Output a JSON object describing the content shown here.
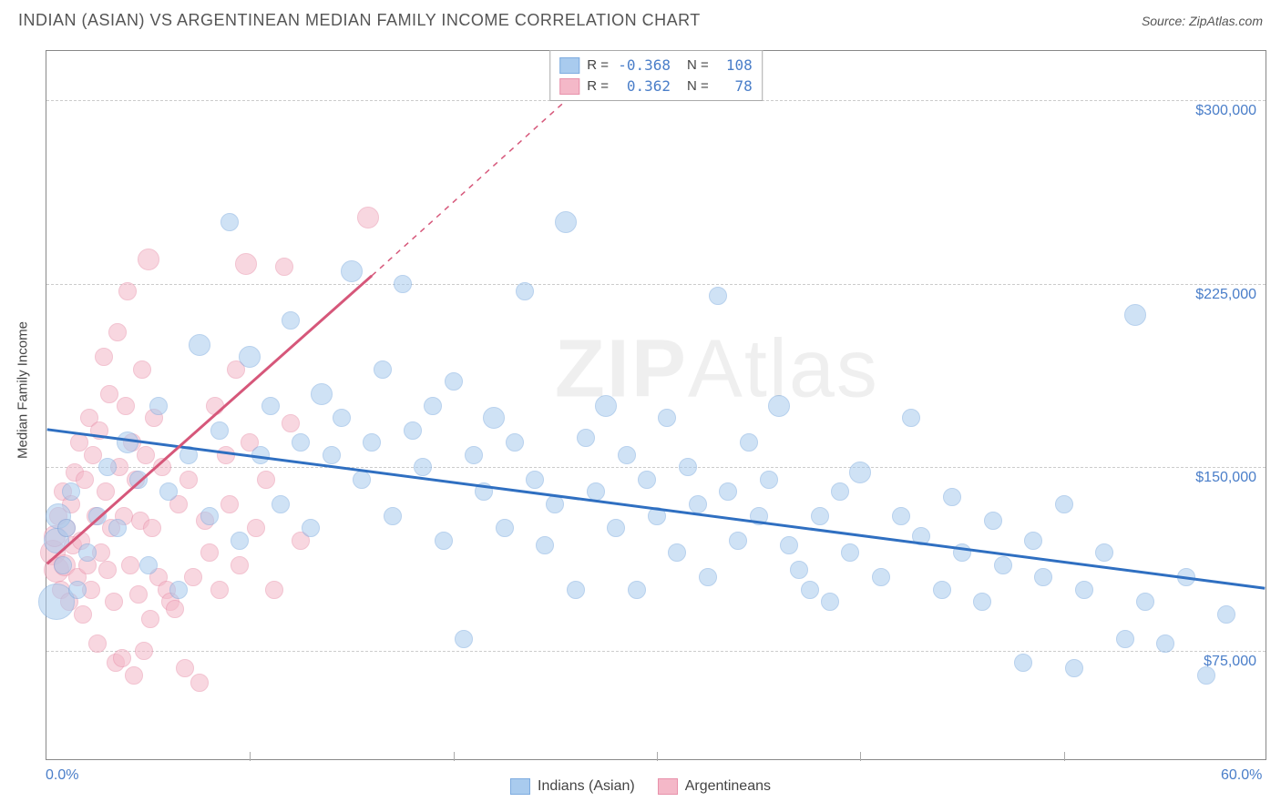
{
  "title": "INDIAN (ASIAN) VS ARGENTINEAN MEDIAN FAMILY INCOME CORRELATION CHART",
  "source": "Source: ZipAtlas.com",
  "y_axis_label": "Median Family Income",
  "watermark_prefix": "ZIP",
  "watermark_suffix": "Atlas",
  "chart": {
    "type": "scatter",
    "background_color": "#ffffff",
    "grid_color": "#cccccc",
    "border_color": "#888888",
    "x_range": [
      0,
      60
    ],
    "y_range": [
      30000,
      320000
    ],
    "x_ticks": [
      0,
      60
    ],
    "x_tick_labels": [
      "0.0%",
      "60.0%"
    ],
    "x_minor_ticks": [
      10,
      20,
      30,
      40,
      50
    ],
    "y_ticks": [
      75000,
      150000,
      225000,
      300000
    ],
    "y_tick_labels": [
      "$75,000",
      "$150,000",
      "$225,000",
      "$300,000"
    ],
    "tick_color": "#4a7ec9",
    "tick_fontsize": 16,
    "label_fontsize": 15
  },
  "series": [
    {
      "name": "Indians (Asian)",
      "fill": "#a9cbee",
      "stroke": "#7eace0",
      "opacity": 0.55,
      "R": "-0.368",
      "N": "108",
      "trend": {
        "x1": 0,
        "y1": 165000,
        "x2": 60,
        "y2": 100000,
        "color": "#2f6fc1",
        "width": 3,
        "dash": "none"
      },
      "points": [
        [
          0.5,
          120000,
          14
        ],
        [
          0.5,
          95000,
          20
        ],
        [
          0.6,
          130000,
          14
        ],
        [
          0.8,
          110000,
          10
        ],
        [
          1.0,
          125000,
          10
        ],
        [
          1.2,
          140000,
          10
        ],
        [
          1.5,
          100000,
          10
        ],
        [
          2.0,
          115000,
          10
        ],
        [
          2.5,
          130000,
          10
        ],
        [
          3.0,
          150000,
          10
        ],
        [
          3.5,
          125000,
          10
        ],
        [
          4.0,
          160000,
          12
        ],
        [
          4.5,
          145000,
          10
        ],
        [
          5.0,
          110000,
          10
        ],
        [
          5.5,
          175000,
          10
        ],
        [
          6.0,
          140000,
          10
        ],
        [
          6.5,
          100000,
          10
        ],
        [
          7.0,
          155000,
          10
        ],
        [
          7.5,
          200000,
          12
        ],
        [
          8.0,
          130000,
          10
        ],
        [
          8.5,
          165000,
          10
        ],
        [
          9.0,
          250000,
          10
        ],
        [
          9.5,
          120000,
          10
        ],
        [
          10.0,
          195000,
          12
        ],
        [
          10.5,
          155000,
          10
        ],
        [
          11.0,
          175000,
          10
        ],
        [
          11.5,
          135000,
          10
        ],
        [
          12.0,
          210000,
          10
        ],
        [
          12.5,
          160000,
          10
        ],
        [
          13.0,
          125000,
          10
        ],
        [
          13.5,
          180000,
          12
        ],
        [
          14.0,
          155000,
          10
        ],
        [
          14.5,
          170000,
          10
        ],
        [
          15.0,
          230000,
          12
        ],
        [
          15.5,
          145000,
          10
        ],
        [
          16.0,
          160000,
          10
        ],
        [
          16.5,
          190000,
          10
        ],
        [
          17.0,
          130000,
          10
        ],
        [
          17.5,
          225000,
          10
        ],
        [
          18.0,
          165000,
          10
        ],
        [
          18.5,
          150000,
          10
        ],
        [
          19.0,
          175000,
          10
        ],
        [
          19.5,
          120000,
          10
        ],
        [
          20.0,
          185000,
          10
        ],
        [
          20.5,
          80000,
          10
        ],
        [
          21.0,
          155000,
          10
        ],
        [
          21.5,
          140000,
          10
        ],
        [
          22.0,
          170000,
          12
        ],
        [
          22.5,
          125000,
          10
        ],
        [
          23.0,
          160000,
          10
        ],
        [
          23.5,
          222000,
          10
        ],
        [
          24.0,
          145000,
          10
        ],
        [
          24.5,
          118000,
          10
        ],
        [
          25.0,
          135000,
          10
        ],
        [
          25.5,
          250000,
          12
        ],
        [
          26.0,
          100000,
          10
        ],
        [
          26.5,
          162000,
          10
        ],
        [
          27.0,
          140000,
          10
        ],
        [
          27.5,
          175000,
          12
        ],
        [
          28.0,
          125000,
          10
        ],
        [
          28.5,
          155000,
          10
        ],
        [
          29.0,
          100000,
          10
        ],
        [
          29.5,
          145000,
          10
        ],
        [
          30.0,
          130000,
          10
        ],
        [
          30.5,
          170000,
          10
        ],
        [
          31.0,
          115000,
          10
        ],
        [
          31.5,
          150000,
          10
        ],
        [
          32.0,
          135000,
          10
        ],
        [
          32.5,
          105000,
          10
        ],
        [
          33.0,
          220000,
          10
        ],
        [
          33.5,
          140000,
          10
        ],
        [
          34.0,
          120000,
          10
        ],
        [
          34.5,
          160000,
          10
        ],
        [
          35.0,
          130000,
          10
        ],
        [
          35.5,
          145000,
          10
        ],
        [
          36.0,
          175000,
          12
        ],
        [
          36.5,
          118000,
          10
        ],
        [
          37.0,
          108000,
          10
        ],
        [
          37.5,
          100000,
          10
        ],
        [
          38.0,
          130000,
          10
        ],
        [
          38.5,
          95000,
          10
        ],
        [
          39.0,
          140000,
          10
        ],
        [
          39.5,
          115000,
          10
        ],
        [
          40.0,
          148000,
          12
        ],
        [
          41.0,
          105000,
          10
        ],
        [
          42.0,
          130000,
          10
        ],
        [
          42.5,
          170000,
          10
        ],
        [
          43.0,
          122000,
          10
        ],
        [
          44.0,
          100000,
          10
        ],
        [
          44.5,
          138000,
          10
        ],
        [
          45.0,
          115000,
          10
        ],
        [
          46.0,
          95000,
          10
        ],
        [
          46.5,
          128000,
          10
        ],
        [
          47.0,
          110000,
          10
        ],
        [
          48.0,
          70000,
          10
        ],
        [
          48.5,
          120000,
          10
        ],
        [
          49.0,
          105000,
          10
        ],
        [
          50.0,
          135000,
          10
        ],
        [
          50.5,
          68000,
          10
        ],
        [
          51.0,
          100000,
          10
        ],
        [
          52.0,
          115000,
          10
        ],
        [
          53.0,
          80000,
          10
        ],
        [
          53.5,
          212000,
          12
        ],
        [
          54.0,
          95000,
          10
        ],
        [
          55.0,
          78000,
          10
        ],
        [
          56.0,
          105000,
          10
        ],
        [
          57.0,
          65000,
          10
        ],
        [
          58.0,
          90000,
          10
        ]
      ]
    },
    {
      "name": "Argentineans",
      "fill": "#f4b8c8",
      "stroke": "#e892ab",
      "opacity": 0.55,
      "R": "0.362",
      "N": "78",
      "trend_solid": {
        "x1": 0,
        "y1": 110000,
        "x2": 16,
        "y2": 228000,
        "color": "#d6577a",
        "width": 3
      },
      "trend_dash": {
        "x1": 16,
        "y1": 228000,
        "x2": 28,
        "y2": 318000,
        "color": "#d6577a",
        "width": 1.5
      },
      "points": [
        [
          0.3,
          115000,
          14
        ],
        [
          0.4,
          122000,
          12
        ],
        [
          0.5,
          108000,
          14
        ],
        [
          0.6,
          130000,
          10
        ],
        [
          0.7,
          100000,
          10
        ],
        [
          0.8,
          140000,
          10
        ],
        [
          0.9,
          110000,
          12
        ],
        [
          1.0,
          125000,
          10
        ],
        [
          1.1,
          95000,
          10
        ],
        [
          1.2,
          135000,
          10
        ],
        [
          1.3,
          118000,
          10
        ],
        [
          1.4,
          148000,
          10
        ],
        [
          1.5,
          105000,
          10
        ],
        [
          1.6,
          160000,
          10
        ],
        [
          1.7,
          120000,
          10
        ],
        [
          1.8,
          90000,
          10
        ],
        [
          1.9,
          145000,
          10
        ],
        [
          2.0,
          110000,
          10
        ],
        [
          2.1,
          170000,
          10
        ],
        [
          2.2,
          100000,
          10
        ],
        [
          2.3,
          155000,
          10
        ],
        [
          2.4,
          130000,
          10
        ],
        [
          2.5,
          78000,
          10
        ],
        [
          2.6,
          165000,
          10
        ],
        [
          2.7,
          115000,
          10
        ],
        [
          2.8,
          195000,
          10
        ],
        [
          2.9,
          140000,
          10
        ],
        [
          3.0,
          108000,
          10
        ],
        [
          3.1,
          180000,
          10
        ],
        [
          3.2,
          125000,
          10
        ],
        [
          3.3,
          95000,
          10
        ],
        [
          3.4,
          70000,
          10
        ],
        [
          3.5,
          205000,
          10
        ],
        [
          3.6,
          150000,
          10
        ],
        [
          3.7,
          72000,
          10
        ],
        [
          3.8,
          130000,
          10
        ],
        [
          3.9,
          175000,
          10
        ],
        [
          4.0,
          222000,
          10
        ],
        [
          4.1,
          110000,
          10
        ],
        [
          4.2,
          160000,
          10
        ],
        [
          4.3,
          65000,
          10
        ],
        [
          4.4,
          145000,
          10
        ],
        [
          4.5,
          98000,
          10
        ],
        [
          4.6,
          128000,
          10
        ],
        [
          4.7,
          190000,
          10
        ],
        [
          4.8,
          75000,
          10
        ],
        [
          4.9,
          155000,
          10
        ],
        [
          5.0,
          235000,
          12
        ],
        [
          5.1,
          88000,
          10
        ],
        [
          5.2,
          125000,
          10
        ],
        [
          5.3,
          170000,
          10
        ],
        [
          5.5,
          105000,
          10
        ],
        [
          5.7,
          150000,
          10
        ],
        [
          5.9,
          100000,
          10
        ],
        [
          6.1,
          95000,
          10
        ],
        [
          6.3,
          92000,
          10
        ],
        [
          6.5,
          135000,
          10
        ],
        [
          6.8,
          68000,
          10
        ],
        [
          7.0,
          145000,
          10
        ],
        [
          7.2,
          105000,
          10
        ],
        [
          7.5,
          62000,
          10
        ],
        [
          7.8,
          128000,
          10
        ],
        [
          8.0,
          115000,
          10
        ],
        [
          8.3,
          175000,
          10
        ],
        [
          8.5,
          100000,
          10
        ],
        [
          8.8,
          155000,
          10
        ],
        [
          9.0,
          135000,
          10
        ],
        [
          9.3,
          190000,
          10
        ],
        [
          9.5,
          110000,
          10
        ],
        [
          9.8,
          233000,
          12
        ],
        [
          10.0,
          160000,
          10
        ],
        [
          10.3,
          125000,
          10
        ],
        [
          10.8,
          145000,
          10
        ],
        [
          11.2,
          100000,
          10
        ],
        [
          11.7,
          232000,
          10
        ],
        [
          12.0,
          168000,
          10
        ],
        [
          12.5,
          120000,
          10
        ],
        [
          15.8,
          252000,
          12
        ]
      ]
    }
  ],
  "legend_top": {
    "rows": [
      {
        "swatch_fill": "#a9cbee",
        "swatch_stroke": "#7eace0",
        "R_label": "R =",
        "R": "-0.368",
        "N_label": "N =",
        "N": "108"
      },
      {
        "swatch_fill": "#f4b8c8",
        "swatch_stroke": "#e892ab",
        "R_label": "R =",
        "R": "0.362",
        "N_label": "N =",
        "N": "78"
      }
    ]
  },
  "legend_bottom": [
    {
      "swatch_fill": "#a9cbee",
      "swatch_stroke": "#7eace0",
      "label": "Indians (Asian)"
    },
    {
      "swatch_fill": "#f4b8c8",
      "swatch_stroke": "#e892ab",
      "label": "Argentineans"
    }
  ]
}
